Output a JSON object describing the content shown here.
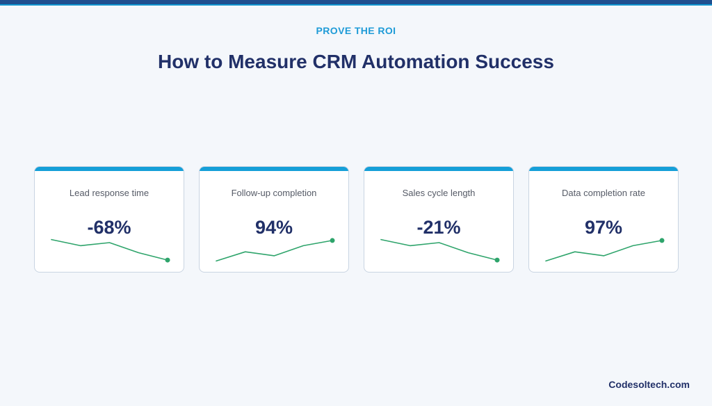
{
  "header": {
    "eyebrow": "PROVE THE ROI",
    "title": "How to Measure CRM Automation Success"
  },
  "colors": {
    "header_bar": "#1f4f8f",
    "accent_blue": "#159fd8",
    "title_navy": "#213068",
    "sparkline_green": "#2ea46b"
  },
  "cards": [
    {
      "label": "Lead response time",
      "value": "-68%",
      "trend": [
        0.85,
        0.65,
        0.75,
        0.42,
        0.18
      ]
    },
    {
      "label": "Follow-up completion",
      "value": "94%",
      "trend": [
        0.15,
        0.45,
        0.32,
        0.65,
        0.82
      ]
    },
    {
      "label": "Sales cycle length",
      "value": "-21%",
      "trend": [
        0.85,
        0.65,
        0.75,
        0.42,
        0.18
      ]
    },
    {
      "label": "Data completion rate",
      "value": "97%",
      "trend": [
        0.15,
        0.45,
        0.32,
        0.65,
        0.82
      ]
    }
  ],
  "footer": {
    "brand": "Codesoltech.com"
  }
}
